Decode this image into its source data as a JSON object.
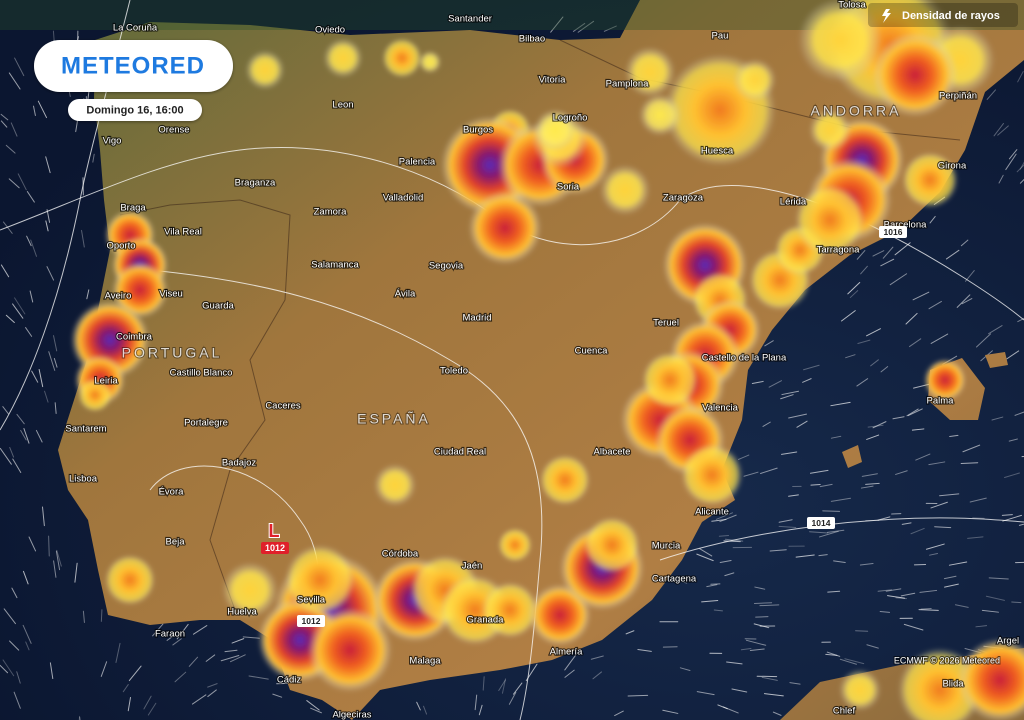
{
  "logo": "METEORED",
  "timestamp": "Domingo 16, 16:00",
  "layer_label": "Densidad de rayos",
  "credit": "ECMWF © 2026 Meteored",
  "countries": [
    "PORTUGAL",
    "ESPAÑA",
    "ANDORRA"
  ],
  "cities": [
    "La Coruña",
    "Oviedo",
    "Santander",
    "Bilbao",
    "Vitoria",
    "Pamplona",
    "Pau",
    "Tolosa",
    "Leon",
    "Orense",
    "Vigo",
    "Burgos",
    "Logroño",
    "Palencia",
    "Huesca",
    "Girona",
    "Perpiñán",
    "Braganza",
    "Zamora",
    "Valladolid",
    "Soria",
    "Zaragoza",
    "Lérida",
    "Barcelona",
    "Tarragona",
    "Braga",
    "Vila Real",
    "Oporto",
    "Salamanca",
    "Segovia",
    "Aveiro",
    "Viseu",
    "Guarda",
    "Ávila",
    "Madrid",
    "Teruel",
    "Cuenca",
    "Coimbra",
    "Castello de la Plana",
    "Leiria",
    "Castillo Blanco",
    "Toledo",
    "Valencia",
    "Palma",
    "Caceres",
    "Portalegre",
    "Santarem",
    "Ciudad Real",
    "Albacete",
    "Badajoz",
    "Lisboa",
    "Évora",
    "Alicante",
    "Beja",
    "Córdoba",
    "Jaén",
    "Murcia",
    "Cartagena",
    "Sevilla",
    "Huelva",
    "Granada",
    "Almería",
    "Faraon",
    "Malaga",
    "Cádiz",
    "Algeciras",
    "Chlef",
    "Blida",
    "Argel"
  ],
  "pressure": {
    "low": {
      "symbol": "L",
      "value": 1012
    },
    "isobars": [
      1012,
      1016,
      1014
    ]
  }
}
